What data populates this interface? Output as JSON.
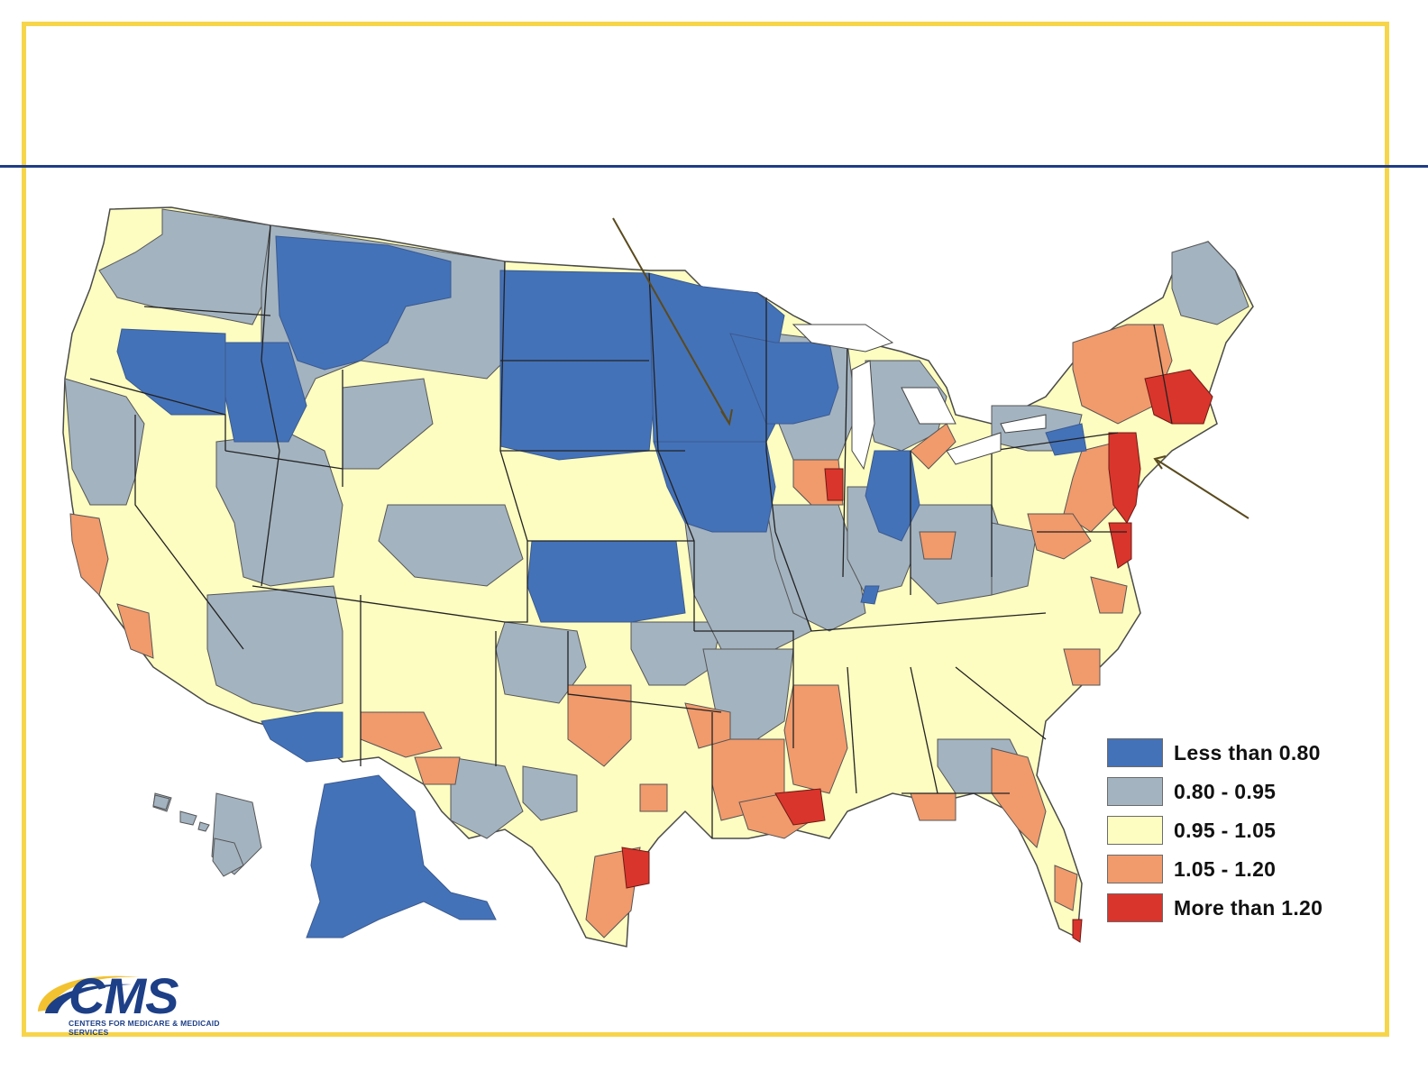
{
  "legend": {
    "items": [
      {
        "label": "Less than 0.80",
        "color": "#4472b8"
      },
      {
        "label": "0.80 - 0.95",
        "color": "#a3b3c0"
      },
      {
        "label": "0.95 - 1.05",
        "color": "#fdfdc1"
      },
      {
        "label": "1.05 - 1.20",
        "color": "#f19a6c"
      },
      {
        "label": "More than 1.20",
        "color": "#d9352c"
      }
    ]
  },
  "logo": {
    "name": "CMS",
    "subtitle": "CENTERS FOR MEDICARE & MEDICAID SERVICES"
  },
  "colors": {
    "frame": "#f7d54a",
    "rule": "#1f3d86",
    "boundary": "#4a4a4a",
    "arrow": "#5a4a1e"
  }
}
